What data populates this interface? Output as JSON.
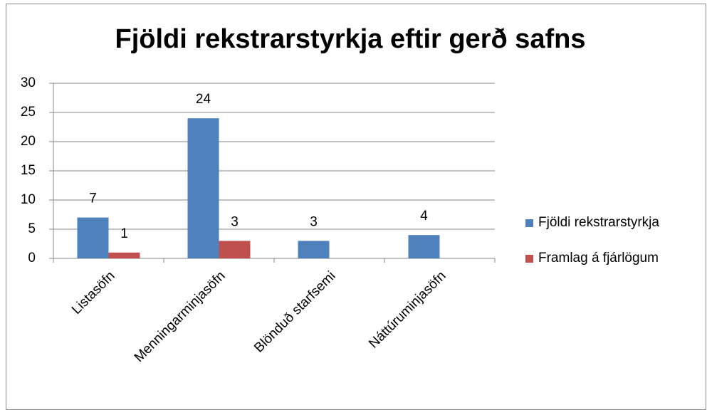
{
  "chart_data": {
    "type": "bar",
    "title": "Fjöldi rekstrarstyrkja eftir gerð safns",
    "categories": [
      "Listasöfn",
      "Menningarminjasöfn",
      "Blönduð starfsemi",
      "Náttúruminjasöfn"
    ],
    "series": [
      {
        "name": "Fjöldi rekstrarstyrkja",
        "color": "#4f81bd",
        "values": [
          7,
          24,
          3,
          4
        ]
      },
      {
        "name": "Framlag á fjárlögum",
        "color": "#c0504d",
        "values": [
          1,
          3,
          null,
          null
        ]
      }
    ],
    "ylim": [
      0,
      30
    ],
    "yticks": [
      0,
      5,
      10,
      15,
      20,
      25,
      30
    ],
    "grid": true,
    "legend": "right"
  }
}
